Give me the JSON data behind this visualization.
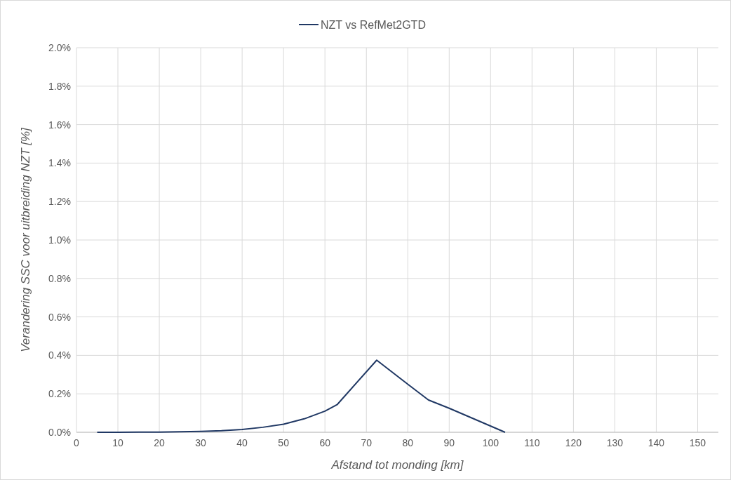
{
  "chart_data": {
    "type": "line",
    "xlabel": "Afstand tot monding [km]",
    "ylabel": "Verandering SSC voor uitbreiding NZT [%]",
    "legend": "top",
    "grid": true,
    "line_style": "solid",
    "marker": "none",
    "x": [
      5,
      10,
      15,
      20,
      25,
      30,
      35,
      40,
      45,
      50,
      55,
      60,
      63,
      72.5,
      80,
      85,
      90,
      103.5
    ],
    "series": [
      {
        "name": "NZT vs RefMet2GTD",
        "color": "#203864",
        "values": [
          0,
          0,
          0.001,
          0.001,
          0.003,
          0.005,
          0.008,
          0.015,
          0.026,
          0.042,
          0.07,
          0.11,
          0.145,
          0.375,
          0.25,
          0.168,
          0.125,
          0
        ]
      }
    ],
    "xlim": [
      0,
      155
    ],
    "xticks": [
      0,
      10,
      20,
      30,
      40,
      50,
      60,
      70,
      80,
      90,
      100,
      110,
      120,
      130,
      140,
      150
    ],
    "ylim": [
      0,
      2
    ],
    "yticks": [
      {
        "value": 0,
        "label": "0.0%"
      },
      {
        "value": 0.2,
        "label": "0.2%"
      },
      {
        "value": 0.4,
        "label": "0.4%"
      },
      {
        "value": 0.6,
        "label": "0.6%"
      },
      {
        "value": 0.8,
        "label": "0.8%"
      },
      {
        "value": 1,
        "label": "1.0%"
      },
      {
        "value": 1.2,
        "label": "1.2%"
      },
      {
        "value": 1.4,
        "label": "1.4%"
      },
      {
        "value": 1.6,
        "label": "1.6%"
      },
      {
        "value": 1.8,
        "label": "1.8%"
      },
      {
        "value": 2,
        "label": "2.0%"
      }
    ]
  }
}
